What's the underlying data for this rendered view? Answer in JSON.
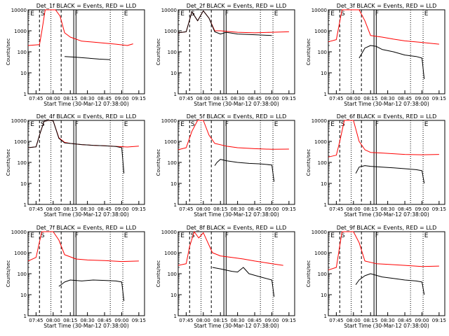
{
  "figure": {
    "background": "#ffffff",
    "event_color": "#000000",
    "lld_color": "#ff0000",
    "ylabel": "Counts/sec",
    "xlabel": "Start Time (30-Mar-12 07:38:00)",
    "x_tick_labels": [
      "07:45",
      "08:00",
      "08:15",
      "08:30",
      "08:45",
      "09:00",
      "09:15"
    ],
    "y_tick_labels": [
      "1",
      "10",
      "100",
      "1000",
      "10000"
    ],
    "marker_labels": [
      "E",
      "S",
      "F",
      "E"
    ]
  },
  "chart_data": [
    {
      "type": "line",
      "title": "Det_1f BLACK = Events, RED = LLD",
      "xlabel": "Start Time (30-Mar-12 07:38:00)",
      "ylabel": "Counts/sec",
      "x_tick_labels": [
        "07:45",
        "08:00",
        "08:15",
        "08:30",
        "08:45",
        "09:00",
        "09:15"
      ],
      "y_scale": "log",
      "ylim": [
        1,
        10000
      ],
      "marker_labels": [
        "E",
        "S",
        "F",
        "E"
      ],
      "series": [
        {
          "name": "LLD",
          "color": "#ff0000",
          "x": [
            "07:38",
            "07:48",
            "07:50",
            "07:53",
            "07:57",
            "08:02",
            "08:06",
            "08:10",
            "08:15",
            "08:25",
            "08:35",
            "08:45",
            "08:55",
            "09:05",
            "09:10"
          ],
          "values": [
            200,
            220,
            900,
            10000,
            10000,
            10000,
            5000,
            800,
            500,
            320,
            290,
            260,
            230,
            200,
            240
          ]
        },
        {
          "name": "Events",
          "color": "#000000",
          "x": [
            "08:10",
            "08:20",
            "08:30",
            "08:40",
            "08:50"
          ],
          "values": [
            60,
            55,
            50,
            45,
            42
          ]
        }
      ]
    },
    {
      "type": "line",
      "title": "Det_2f BLACK = Events, RED = LLD",
      "xlabel": "Start Time (30-Mar-12 07:38:00)",
      "ylabel": "Counts/sec",
      "x_tick_labels": [
        "07:45",
        "08:00",
        "08:15",
        "08:30",
        "08:45",
        "09:00",
        "09:15"
      ],
      "y_scale": "log",
      "ylim": [
        1,
        10000
      ],
      "marker_labels": [
        "E",
        "S",
        "F",
        "E"
      ],
      "series": [
        {
          "name": "LLD",
          "color": "#ff0000",
          "x": [
            "07:38",
            "07:45",
            "07:50",
            "07:55",
            "08:00",
            "08:05",
            "08:10",
            "08:15",
            "08:20",
            "08:30",
            "08:45",
            "09:00",
            "09:15"
          ],
          "values": [
            800,
            900,
            8000,
            3000,
            9000,
            4000,
            1000,
            1000,
            950,
            850,
            800,
            850,
            900
          ]
        },
        {
          "name": "Events",
          "color": "#000000",
          "x": [
            "07:38",
            "07:45",
            "07:50",
            "07:55",
            "08:00",
            "08:05",
            "08:10",
            "08:15",
            "08:20",
            "08:30",
            "08:45",
            "09:00"
          ],
          "values": [
            800,
            900,
            8000,
            3000,
            9000,
            4000,
            900,
            700,
            850,
            700,
            650,
            600
          ]
        }
      ]
    },
    {
      "type": "line",
      "title": "Det_3f BLACK = Events, RED = LLD",
      "xlabel": "Start Time (30-Mar-12 07:38:00)",
      "ylabel": "Counts/sec",
      "x_tick_labels": [
        "07:45",
        "08:00",
        "08:15",
        "08:30",
        "08:45",
        "09:00",
        "09:15"
      ],
      "y_scale": "log",
      "ylim": [
        1,
        10000
      ],
      "marker_labels": [
        "E",
        "S",
        "F",
        "E"
      ],
      "series": [
        {
          "name": "LLD",
          "color": "#ff0000",
          "x": [
            "07:38",
            "07:45",
            "07:50",
            "07:55",
            "08:00",
            "08:05",
            "08:10",
            "08:15",
            "08:25",
            "08:35",
            "08:45",
            "09:00",
            "09:15"
          ],
          "values": [
            300,
            380,
            10000,
            10000,
            10000,
            10000,
            3000,
            600,
            500,
            400,
            330,
            280,
            230
          ]
        },
        {
          "name": "Events",
          "color": "#000000",
          "x": [
            "08:05",
            "08:10",
            "08:15",
            "08:20",
            "08:25",
            "08:35",
            "08:45",
            "08:55",
            "09:00",
            "09:02"
          ],
          "values": [
            50,
            150,
            200,
            180,
            130,
            100,
            70,
            60,
            50,
            5
          ]
        }
      ]
    },
    {
      "type": "line",
      "title": "Det_4f BLACK = Events, RED = LLD",
      "xlabel": "Start Time (30-Mar-12 07:38:00)",
      "ylabel": "Counts/sec",
      "x_tick_labels": [
        "07:45",
        "08:00",
        "08:15",
        "08:30",
        "08:45",
        "09:00",
        "09:15"
      ],
      "y_scale": "log",
      "ylim": [
        1,
        10000
      ],
      "marker_labels": [
        "E",
        "S",
        "F",
        "E"
      ],
      "series": [
        {
          "name": "LLD",
          "color": "#ff0000",
          "x": [
            "07:38",
            "07:45",
            "07:48",
            "07:52",
            "07:56",
            "08:00",
            "08:05",
            "08:10",
            "08:15",
            "08:25",
            "08:35",
            "08:45",
            "08:55",
            "09:05",
            "09:15"
          ],
          "values": [
            500,
            550,
            2000,
            9000,
            10000,
            9500,
            1500,
            900,
            800,
            700,
            650,
            620,
            580,
            540,
            600
          ]
        },
        {
          "name": "Events",
          "color": "#000000",
          "x": [
            "07:38",
            "07:45",
            "07:48",
            "07:52",
            "07:56",
            "08:00",
            "08:05",
            "08:10",
            "08:15",
            "08:25",
            "08:35",
            "08:45",
            "08:55",
            "09:00",
            "09:02"
          ],
          "values": [
            500,
            550,
            2000,
            9000,
            10000,
            9500,
            1400,
            850,
            800,
            700,
            650,
            620,
            570,
            500,
            30
          ]
        }
      ]
    },
    {
      "type": "line",
      "title": "Det_5f BLACK = Events, RED = LLD",
      "xlabel": "Start Time (30-Mar-12 07:38:00)",
      "ylabel": "Counts/sec",
      "x_tick_labels": [
        "07:45",
        "08:00",
        "08:15",
        "08:30",
        "08:45",
        "09:00",
        "09:15"
      ],
      "y_scale": "log",
      "ylim": [
        1,
        10000
      ],
      "marker_labels": [
        "E",
        "S",
        "F",
        "E"
      ],
      "series": [
        {
          "name": "LLD",
          "color": "#ff0000",
          "x": [
            "07:38",
            "07:45",
            "07:50",
            "07:55",
            "08:00",
            "08:05",
            "08:10",
            "08:20",
            "08:30",
            "08:45",
            "09:00",
            "09:15"
          ],
          "values": [
            400,
            500,
            3000,
            10000,
            10000,
            2000,
            800,
            600,
            500,
            450,
            420,
            430
          ]
        },
        {
          "name": "Events",
          "color": "#000000",
          "x": [
            "08:10",
            "08:12",
            "08:15",
            "08:20",
            "08:30",
            "08:40",
            "08:50",
            "09:00",
            "09:02"
          ],
          "values": [
            70,
            100,
            140,
            120,
            100,
            90,
            85,
            75,
            12
          ]
        }
      ]
    },
    {
      "type": "line",
      "title": "Det_6f BLACK = Events, RED = LLD",
      "xlabel": "Start Time (30-Mar-12 07:38:00)",
      "ylabel": "Counts/sec",
      "x_tick_labels": [
        "07:45",
        "08:00",
        "08:15",
        "08:30",
        "08:45",
        "09:00",
        "09:15"
      ],
      "y_scale": "log",
      "ylim": [
        1,
        10000
      ],
      "marker_labels": [
        "E",
        "S",
        "F",
        "E"
      ],
      "series": [
        {
          "name": "LLD",
          "color": "#ff0000",
          "x": [
            "07:38",
            "07:45",
            "07:48",
            "07:52",
            "07:56",
            "08:00",
            "08:05",
            "08:10",
            "08:15",
            "08:25",
            "08:35",
            "08:45",
            "09:00",
            "09:15"
          ],
          "values": [
            180,
            220,
            1000,
            10000,
            10000,
            10000,
            1000,
            400,
            300,
            280,
            260,
            240,
            230,
            240
          ]
        },
        {
          "name": "Events",
          "color": "#000000",
          "x": [
            "08:02",
            "08:05",
            "08:10",
            "08:15",
            "08:25",
            "08:35",
            "08:45",
            "08:55",
            "09:00",
            "09:02"
          ],
          "values": [
            30,
            60,
            70,
            65,
            60,
            55,
            50,
            45,
            40,
            10
          ]
        }
      ]
    },
    {
      "type": "line",
      "title": "Det_7f BLACK = Events, RED = LLD",
      "xlabel": "Start Time (30-Mar-12 07:38:00)",
      "ylabel": "Counts/sec",
      "x_tick_labels": [
        "07:45",
        "08:00",
        "08:15",
        "08:30",
        "08:45",
        "09:00",
        "09:15"
      ],
      "y_scale": "log",
      "ylim": [
        1,
        10000
      ],
      "marker_labels": [
        "E",
        "S",
        "F",
        "E"
      ],
      "series": [
        {
          "name": "LLD",
          "color": "#ff0000",
          "x": [
            "07:38",
            "07:45",
            "07:50",
            "07:55",
            "08:00",
            "08:05",
            "08:10",
            "08:20",
            "08:30",
            "08:45",
            "09:00",
            "09:15"
          ],
          "values": [
            400,
            600,
            10000,
            10000,
            10000,
            4000,
            800,
            500,
            450,
            420,
            380,
            400
          ]
        },
        {
          "name": "Events",
          "color": "#000000",
          "x": [
            "08:05",
            "08:10",
            "08:15",
            "08:25",
            "08:35",
            "08:45",
            "08:55",
            "09:00",
            "09:02"
          ],
          "values": [
            25,
            40,
            50,
            45,
            50,
            48,
            45,
            40,
            5
          ]
        }
      ]
    },
    {
      "type": "line",
      "title": "Det_8f BLACK = Events, RED = LLD",
      "xlabel": "Start Time (30-Mar-12 07:38:00)",
      "ylabel": "Counts/sec",
      "x_tick_labels": [
        "07:45",
        "08:00",
        "08:15",
        "08:30",
        "08:45",
        "09:00",
        "09:15"
      ],
      "y_scale": "log",
      "ylim": [
        1,
        10000
      ],
      "marker_labels": [
        "E",
        "S",
        "F",
        "E"
      ],
      "series": [
        {
          "name": "LLD",
          "color": "#ff0000",
          "x": [
            "07:38",
            "07:45",
            "07:48",
            "07:52",
            "07:56",
            "08:00",
            "08:04",
            "08:08",
            "08:15",
            "08:25",
            "08:35",
            "08:45",
            "09:00",
            "09:10"
          ],
          "values": [
            250,
            300,
            2000,
            10000,
            5000,
            9000,
            3000,
            1000,
            700,
            600,
            500,
            400,
            300,
            250
          ]
        },
        {
          "name": "Events",
          "color": "#000000",
          "x": [
            "08:08",
            "08:15",
            "08:25",
            "08:30",
            "08:35",
            "08:40",
            "08:50",
            "09:00",
            "09:02"
          ],
          "values": [
            200,
            170,
            130,
            120,
            200,
            100,
            70,
            50,
            8
          ]
        }
      ]
    },
    {
      "type": "line",
      "title": "Det_9f BLACK = Events, RED = LLD",
      "xlabel": "Start Time (30-Mar-12 07:38:00)",
      "ylabel": "Counts/sec",
      "x_tick_labels": [
        "07:45",
        "08:00",
        "08:15",
        "08:30",
        "08:45",
        "09:00",
        "09:15"
      ],
      "y_scale": "log",
      "ylim": [
        1,
        10000
      ],
      "marker_labels": [
        "E",
        "S",
        "F",
        "E"
      ],
      "series": [
        {
          "name": "LLD",
          "color": "#ff0000",
          "x": [
            "07:38",
            "07:45",
            "07:50",
            "07:55",
            "08:00",
            "08:05",
            "08:10",
            "08:20",
            "08:30",
            "08:45",
            "09:00",
            "09:15"
          ],
          "values": [
            150,
            200,
            10000,
            10000,
            10000,
            3000,
            400,
            300,
            280,
            250,
            220,
            230
          ]
        },
        {
          "name": "Events",
          "color": "#000000",
          "x": [
            "08:02",
            "08:05",
            "08:10",
            "08:15",
            "08:25",
            "08:35",
            "08:45",
            "08:55",
            "09:00",
            "09:02"
          ],
          "values": [
            30,
            50,
            80,
            100,
            70,
            60,
            50,
            45,
            40,
            10
          ]
        }
      ]
    }
  ]
}
